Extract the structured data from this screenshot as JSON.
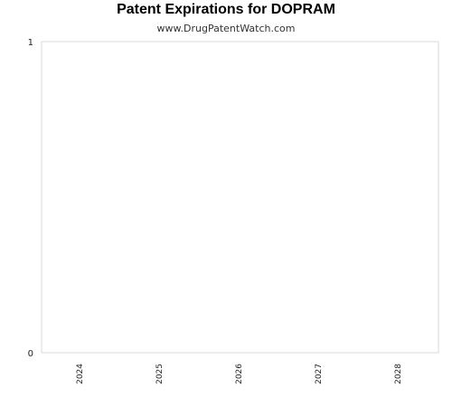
{
  "chart_data": {
    "type": "bar",
    "title": "Patent Expirations for DOPRAM",
    "subtitle": "www.DrugPatentWatch.com",
    "categories": [
      "2024",
      "2025",
      "2026",
      "2027",
      "2028"
    ],
    "values": [
      0,
      0,
      0,
      0,
      0
    ],
    "xlabel": "",
    "ylabel": "",
    "ylim": [
      0,
      1
    ],
    "y_ticks": [
      "0",
      "1"
    ],
    "grid": false,
    "legend": "none",
    "colors": {
      "plot_border": "#d9d9d9",
      "bar": "#4472c4",
      "text": "#222222"
    }
  }
}
